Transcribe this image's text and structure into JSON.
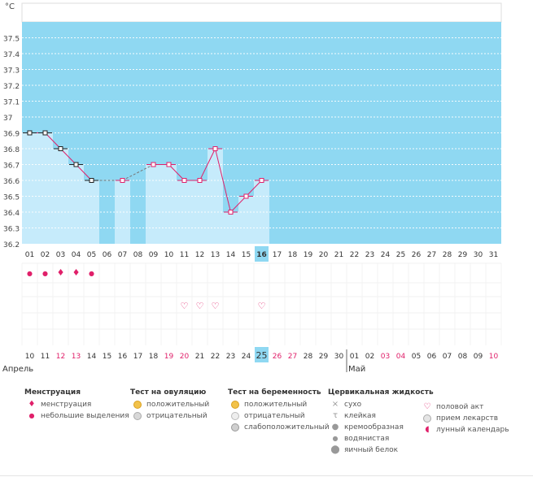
{
  "chart_data": {
    "type": "line",
    "unit_label": "°C",
    "ylim": [
      36.2,
      37.6
    ],
    "yticks": [
      "37.5",
      "37.4",
      "37.3",
      "37.2",
      "37.1",
      "37",
      "36.9",
      "36.8",
      "36.7",
      "36.6",
      "36.5",
      "36.4",
      "36.3",
      "36.2"
    ],
    "cycle_days": [
      "01",
      "02",
      "03",
      "04",
      "05",
      "06",
      "07",
      "08",
      "09",
      "10",
      "11",
      "12",
      "13",
      "14",
      "15",
      "16",
      "17",
      "18",
      "19",
      "20",
      "21",
      "22",
      "23",
      "24",
      "25",
      "26",
      "27",
      "28",
      "29",
      "30",
      "31"
    ],
    "current_day_index": 15,
    "temperatures": [
      36.9,
      36.9,
      36.8,
      36.7,
      36.6,
      null,
      36.6,
      null,
      36.7,
      36.7,
      36.6,
      36.6,
      36.8,
      36.4,
      36.5,
      36.6
    ],
    "marker_colors": [
      "#222222",
      "#222222",
      "#222222",
      "#222222",
      "#222222",
      null,
      "#e0206a",
      null,
      "#e0206a",
      "#e0206a",
      "#e0206a",
      "#e0206a",
      "#e0206a",
      "#e0206a",
      "#e0206a",
      "#e0206a"
    ],
    "menstruation_days": [
      0,
      1,
      2,
      3,
      4
    ],
    "menstruation_heavy": [
      false,
      false,
      true,
      true,
      false
    ],
    "intercourse_days": [
      10,
      11,
      12,
      15
    ],
    "calendar_dates": [
      "10",
      "11",
      "12",
      "13",
      "14",
      "15",
      "16",
      "17",
      "18",
      "19",
      "20",
      "21",
      "22",
      "23",
      "24",
      "25",
      "26",
      "27",
      "28",
      "29",
      "30",
      "01",
      "02",
      "03",
      "04",
      "05",
      "06",
      "07",
      "08",
      "09",
      "10"
    ],
    "weekend_flags": [
      false,
      false,
      true,
      true,
      false,
      false,
      false,
      false,
      false,
      true,
      true,
      false,
      false,
      false,
      false,
      false,
      true,
      true,
      false,
      false,
      false,
      false,
      false,
      true,
      true,
      false,
      false,
      false,
      false,
      false,
      true
    ],
    "month_labels": [
      {
        "text": "Апрель",
        "start": 0
      },
      {
        "text": "Май",
        "start": 21
      }
    ]
  },
  "legend": [
    {
      "title": "Менструация",
      "items": [
        {
          "icon": "drop-large-icon",
          "label": "менструация"
        },
        {
          "icon": "drop-small-icon",
          "label": "небольшие выделения"
        }
      ]
    },
    {
      "title": "Тест на овуляцию",
      "items": [
        {
          "icon": "test-positive-icon",
          "label": "положительный"
        },
        {
          "icon": "test-negative-icon",
          "label": "отрицательный"
        }
      ]
    },
    {
      "title": "Тест на беременность",
      "items": [
        {
          "icon": "test-positive-icon",
          "label": "положительный"
        },
        {
          "icon": "test-negative-icon",
          "label": "отрицательный"
        },
        {
          "icon": "test-weak-icon",
          "label": "слабоположительный"
        }
      ]
    },
    {
      "title": "Цервикальная жидкость",
      "items": [
        {
          "icon": "dry-icon",
          "label": "сухо"
        },
        {
          "icon": "sticky-icon",
          "label": "клейкая"
        },
        {
          "icon": "creamy-icon",
          "label": "кремообразная"
        },
        {
          "icon": "watery-icon",
          "label": "водянистая"
        },
        {
          "icon": "egg-white-icon",
          "label": "яичный белок"
        }
      ]
    },
    {
      "title": "",
      "items": [
        {
          "icon": "heart-icon",
          "label": "половой акт"
        },
        {
          "icon": "pill-icon",
          "label": "прием лекарств"
        },
        {
          "icon": "moon-icon",
          "label": "лунный календарь"
        }
      ]
    }
  ],
  "colors": {
    "background": "#8fd8f2",
    "bar_fill": "#c6ebfb",
    "accent": "#e0206a",
    "highlight": "#8fd8f2",
    "weekend": "#e0206a"
  }
}
